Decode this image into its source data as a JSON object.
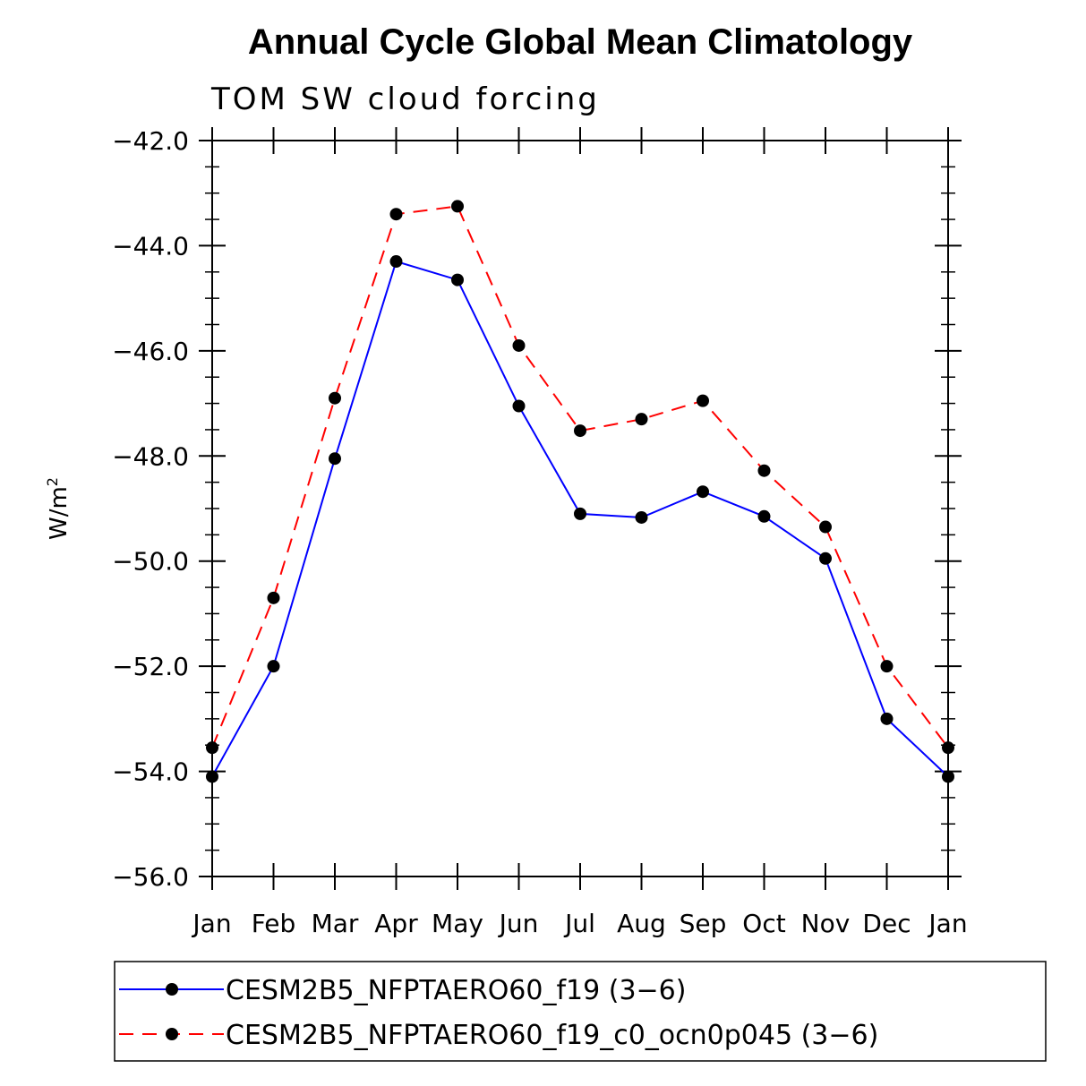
{
  "chart_data": {
    "type": "line",
    "title": "Annual Cycle Global Mean Climatology",
    "subtitle": "TOM SW cloud forcing",
    "ylabel": "W/m",
    "ylabel_sup": "2",
    "xlabel": "",
    "categories": [
      "Jan",
      "Feb",
      "Mar",
      "Apr",
      "May",
      "Jun",
      "Jul",
      "Aug",
      "Sep",
      "Oct",
      "Nov",
      "Dec",
      "Jan"
    ],
    "ylim": [
      -56.0,
      -42.0
    ],
    "yticks": [
      -42.0,
      -44.0,
      -46.0,
      -48.0,
      -50.0,
      -52.0,
      -54.0,
      -56.0
    ],
    "ytick_labels": [
      "−42.0",
      "−44.0",
      "−46.0",
      "−48.0",
      "−50.0",
      "−52.0",
      "−54.0",
      "−56.0"
    ],
    "grid": false,
    "legend_position": "bottom",
    "series": [
      {
        "name": "CESM2B5_NFPTAERO60_f19 (3−6)",
        "color": "#0000ff",
        "dash": "solid",
        "values": [
          -54.1,
          -52.0,
          -48.05,
          -44.3,
          -44.65,
          -47.05,
          -49.1,
          -49.17,
          -48.68,
          -49.15,
          -49.95,
          -53.0,
          -54.1
        ]
      },
      {
        "name": "CESM2B5_NFPTAERO60_f19_c0_ocn0p045 (3−6)",
        "color": "#ff0000",
        "dash": "dashed",
        "values": [
          -53.55,
          -50.7,
          -46.9,
          -43.4,
          -43.25,
          -45.9,
          -47.52,
          -47.3,
          -46.95,
          -48.28,
          -49.35,
          -52.0,
          -53.55
        ]
      }
    ]
  }
}
